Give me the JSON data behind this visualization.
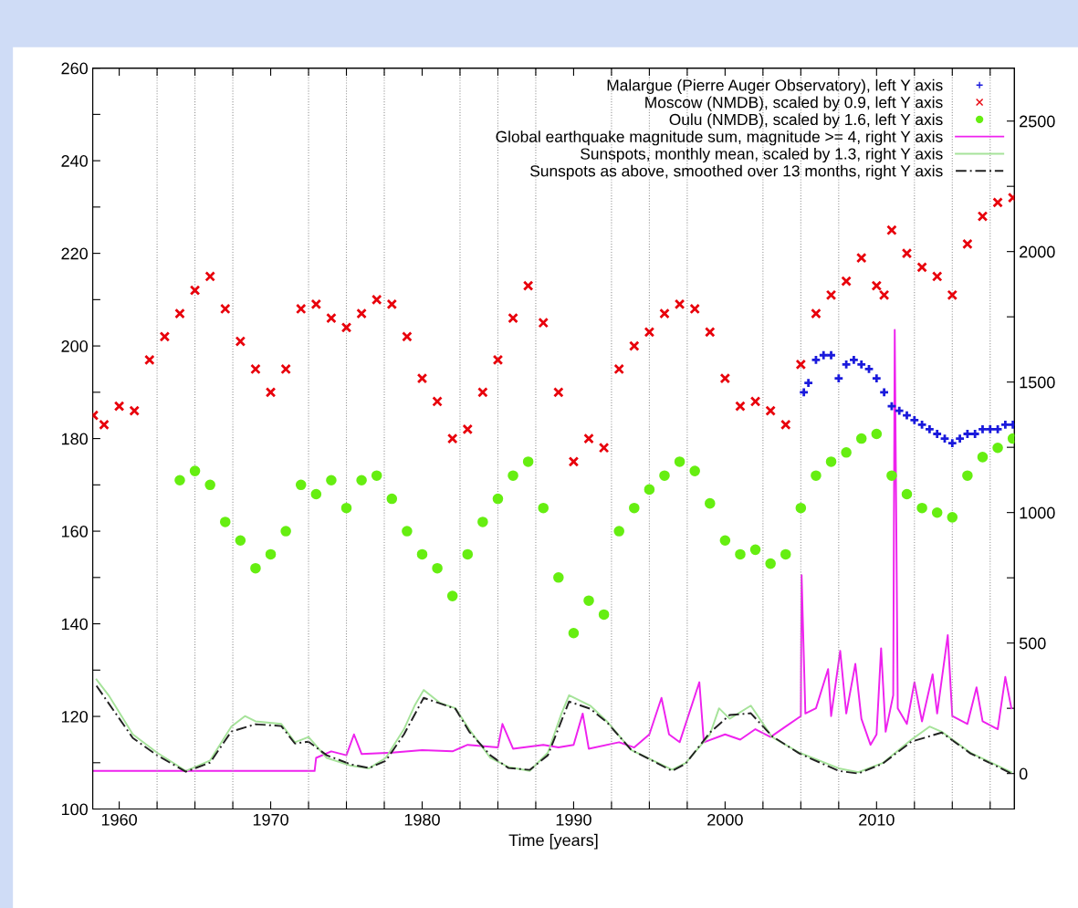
{
  "chart_data": {
    "type": "scatter",
    "xlabel": "Time [years]",
    "legend": "top right",
    "grid": "x",
    "xlim": [
      1958.25,
      2019.1
    ],
    "xticks": [
      {
        "value": 1960,
        "label": "1960"
      },
      {
        "value": 1962.5,
        "label": null
      },
      {
        "value": 1965,
        "label": null
      },
      {
        "value": 1967.5,
        "label": null
      },
      {
        "value": 1970,
        "label": "1970"
      },
      {
        "value": 1972.5,
        "label": null
      },
      {
        "value": 1975,
        "label": null
      },
      {
        "value": 1977.5,
        "label": null
      },
      {
        "value": 1980,
        "label": "1980"
      },
      {
        "value": 1982.5,
        "label": null
      },
      {
        "value": 1985,
        "label": null
      },
      {
        "value": 1987.5,
        "label": null
      },
      {
        "value": 1990,
        "label": "1990"
      },
      {
        "value": 1992.5,
        "label": null
      },
      {
        "value": 1995,
        "label": null
      },
      {
        "value": 1997.5,
        "label": null
      },
      {
        "value": 2000,
        "label": "2000"
      },
      {
        "value": 2002.5,
        "label": null
      },
      {
        "value": 2005,
        "label": null
      },
      {
        "value": 2007.5,
        "label": null
      },
      {
        "value": 2010,
        "label": "2010"
      },
      {
        "value": 2012.5,
        "label": null
      },
      {
        "value": 2015,
        "label": null
      },
      {
        "value": 2017.5,
        "label": null
      }
    ],
    "ylim": [
      100,
      260
    ],
    "yticks": [
      100,
      {
        "value": 110,
        "label": null
      },
      120,
      {
        "value": 130,
        "label": null
      },
      140,
      {
        "value": 150,
        "label": null
      },
      160,
      {
        "value": 170,
        "label": null
      },
      180,
      {
        "value": 190,
        "label": null
      },
      200,
      {
        "value": 210,
        "label": null
      },
      220,
      {
        "value": 230,
        "label": null
      },
      240,
      {
        "value": 250,
        "label": null
      },
      260
    ],
    "y2lim": [
      -136,
      2703
    ],
    "y2ticks": [
      0,
      {
        "value": 250,
        "label": null
      },
      500,
      {
        "value": 750,
        "label": null
      },
      1000,
      {
        "value": 1250,
        "label": null
      },
      1500,
      {
        "value": 1750,
        "label": null
      },
      2000,
      {
        "value": 2250,
        "label": null
      },
      2500
    ],
    "series": [
      {
        "name": "Malargue (Pierre Auger Observatory), left Y axis",
        "marker": "plus",
        "color": "#1a1adc",
        "x": [
          2005.2,
          2005.5,
          2006,
          2006.5,
          2007,
          2007.5,
          2008,
          2008.5,
          2009,
          2009.5,
          2010,
          2010.5,
          2011,
          2011.5,
          2012,
          2012.5,
          2013,
          2013.5,
          2014,
          2014.5,
          2015,
          2015.5,
          2016,
          2016.5,
          2017,
          2017.5,
          2018,
          2018.5,
          2019
        ],
        "values": [
          190,
          192,
          197,
          198,
          198,
          193,
          196,
          197,
          196,
          195,
          193,
          190,
          187,
          186,
          185,
          184,
          183,
          182,
          181,
          180,
          179,
          180,
          181,
          181,
          182,
          182,
          182,
          183,
          183
        ]
      },
      {
        "name": "Moscow (NMDB), scaled by 0.9, left Y axis",
        "marker": "cross",
        "color": "#e8000b",
        "x": [
          1958.3,
          1959,
          1960,
          1961,
          1962,
          1963,
          1964,
          1965,
          1966,
          1967,
          1968,
          1969,
          1970,
          1971,
          1972,
          1973,
          1974,
          1975,
          1976,
          1977,
          1978,
          1979,
          1980,
          1981,
          1982,
          1983,
          1984,
          1985,
          1986,
          1987,
          1988,
          1989,
          1990,
          1991,
          1992,
          1993,
          1994,
          1995,
          1996,
          1997,
          1998,
          1999,
          2000,
          2001,
          2002,
          2003,
          2004,
          2005,
          2006,
          2007,
          2008,
          2009,
          2010,
          2010.5,
          2011,
          2012,
          2013,
          2014,
          2015,
          2016,
          2017,
          2018,
          2019
        ],
        "values": [
          185,
          183,
          187,
          186,
          197,
          202,
          207,
          212,
          215,
          208,
          201,
          195,
          190,
          195,
          208,
          209,
          206,
          204,
          207,
          210,
          209,
          202,
          193,
          188,
          180,
          182,
          190,
          197,
          206,
          213,
          205,
          190,
          175,
          180,
          178,
          195,
          200,
          203,
          207,
          209,
          208,
          203,
          193,
          187,
          188,
          186,
          183,
          196,
          207,
          211,
          214,
          219,
          213,
          211,
          225,
          220,
          217,
          215,
          211,
          222,
          228,
          231,
          232
        ]
      },
      {
        "name": "Oulu (NMDB), scaled by 1.6, left Y axis",
        "marker": "circle",
        "color": "#66ee11",
        "x": [
          1964,
          1965,
          1966,
          1967,
          1968,
          1969,
          1970,
          1971,
          1972,
          1973,
          1974,
          1975,
          1976,
          1977,
          1978,
          1979,
          1980,
          1981,
          1982,
          1983,
          1984,
          1985,
          1986,
          1987,
          1988,
          1989,
          1990,
          1991,
          1992,
          1993,
          1994,
          1995,
          1996,
          1997,
          1998,
          1999,
          2000,
          2001,
          2002,
          2003,
          2004,
          2005,
          2006,
          2007,
          2008,
          2009,
          2010,
          2011,
          2012,
          2013,
          2014,
          2015,
          2016,
          2017,
          2018,
          2019
        ],
        "values": [
          171,
          173,
          170,
          162,
          158,
          152,
          155,
          160,
          170,
          168,
          171,
          165,
          171,
          172,
          167,
          160,
          155,
          152,
          146,
          155,
          162,
          167,
          172,
          175,
          165,
          150,
          138,
          145,
          142,
          160,
          165,
          169,
          172,
          175,
          173,
          166,
          158,
          155,
          156,
          153,
          155,
          165,
          172,
          175,
          177,
          180,
          181,
          172,
          168,
          165,
          164,
          163,
          172,
          176,
          178,
          180
        ]
      },
      {
        "name": "Global earthquake magnitude sum, magnitude >= 4, right Y axis",
        "type": "line",
        "axis": "y2",
        "line_style": "solid",
        "color": "#ee22ee",
        "x": [
          1958.3,
          1965,
          1970,
          1972.9,
          1973,
          1974,
          1975,
          1975.5,
          1976,
          1978,
          1980,
          1982,
          1983,
          1985,
          1985.3,
          1986,
          1988,
          1989,
          1990,
          1990.6,
          1991,
          1993,
          1994,
          1995,
          1995.8,
          1996.3,
          1997,
          1998.3,
          1998.6,
          2000,
          2001,
          2002,
          2003,
          2004,
          2005,
          2005.05,
          2005.3,
          2006,
          2006.8,
          2007,
          2007.6,
          2008,
          2008.6,
          2009,
          2009.6,
          2010,
          2010.3,
          2010.6,
          2011.1,
          2011.2,
          2011.4,
          2012,
          2012.5,
          2013,
          2013.7,
          2014,
          2014.7,
          2015,
          2016,
          2016.6,
          2017,
          2018,
          2018.5,
          2018.9
        ],
        "values": [
          10,
          10,
          10,
          10,
          60,
          85,
          70,
          150,
          75,
          80,
          90,
          85,
          110,
          100,
          190,
          95,
          110,
          100,
          110,
          230,
          95,
          120,
          100,
          150,
          290,
          150,
          120,
          350,
          120,
          150,
          130,
          170,
          140,
          180,
          220,
          760,
          230,
          250,
          400,
          220,
          470,
          230,
          420,
          210,
          110,
          150,
          480,
          160,
          300,
          1700,
          250,
          190,
          350,
          200,
          380,
          230,
          530,
          220,
          190,
          330,
          200,
          170,
          370,
          250
        ]
      },
      {
        "name": "Sunspots, monthly mean, scaled by 1.3, right Y axis",
        "type": "line",
        "axis": "y2",
        "line_style": "solid",
        "color": "#a6e39a",
        "x": [
          1958.5,
          1959.3,
          1960.9,
          1962.5,
          1964.4,
          1966,
          1967.4,
          1968.3,
          1969,
          1970.7,
          1971.6,
          1972.5,
          1973.7,
          1975.3,
          1976.5,
          1977.6,
          1978.8,
          1979.5,
          1980.1,
          1981.2,
          1982.2,
          1983.1,
          1984.5,
          1985.7,
          1987.1,
          1988.3,
          1989.2,
          1989.7,
          1991.1,
          1992.2,
          1993.8,
          1996.5,
          1997.4,
          1999,
          1999.6,
          2000.3,
          2001.7,
          2003.1,
          2004.9,
          2007.5,
          2008.8,
          2010.4,
          2012.3,
          2013.5,
          2014.3,
          2016.2,
          2018.9
        ],
        "values": [
          360,
          300,
          150,
          80,
          10,
          50,
          180,
          220,
          200,
          190,
          120,
          140,
          60,
          30,
          20,
          60,
          170,
          260,
          320,
          270,
          250,
          170,
          60,
          25,
          10,
          80,
          230,
          300,
          260,
          200,
          90,
          15,
          40,
          150,
          250,
          210,
          260,
          140,
          80,
          20,
          5,
          40,
          130,
          180,
          160,
          80,
          5
        ]
      },
      {
        "name": "Sunspots as above, smoothed over 13 months, right Y axis",
        "type": "line",
        "axis": "y2",
        "line_style": "dashed",
        "color": "#222222",
        "x": [
          1958.5,
          1960.9,
          1962.5,
          1964.4,
          1966,
          1967.4,
          1969,
          1970.7,
          1971.6,
          1972.5,
          1973.7,
          1975.3,
          1976.5,
          1977.6,
          1978.8,
          1980.1,
          1982.2,
          1983.1,
          1984.5,
          1985.7,
          1987.1,
          1988.3,
          1989.7,
          1991.1,
          1992.2,
          1993.8,
          1996.5,
          1997.4,
          1999,
          2000.3,
          2001.7,
          2003.1,
          2004.9,
          2007.5,
          2008.8,
          2010.4,
          2012.3,
          2014.3,
          2016.2,
          2018.9
        ],
        "values": [
          336,
          136,
          70,
          7,
          42,
          161,
          189,
          182,
          115,
          122,
          70,
          35,
          21,
          49,
          150,
          290,
          248,
          161,
          70,
          21,
          14,
          70,
          276,
          248,
          196,
          91,
          10,
          38,
          157,
          224,
          231,
          143,
          77,
          10,
          0,
          38,
          122,
          157,
          77,
          0
        ]
      }
    ]
  }
}
